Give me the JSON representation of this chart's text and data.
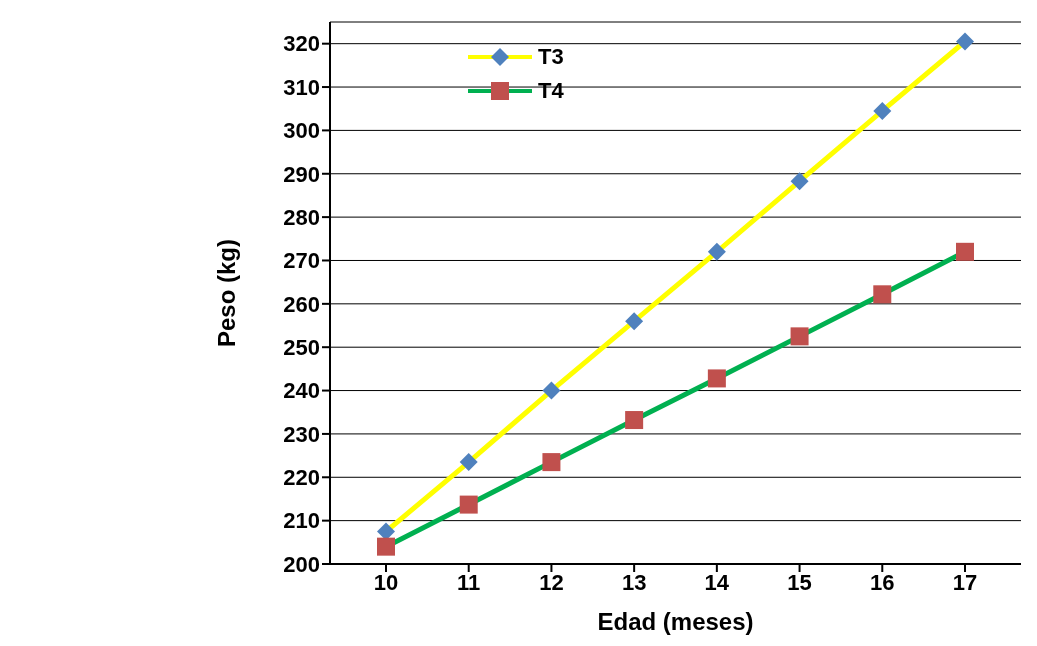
{
  "chart_data": {
    "type": "line",
    "xlabel": "Edad (meses)",
    "ylabel": "Peso (kg)",
    "categories": [
      "10",
      "11",
      "12",
      "13",
      "14",
      "15",
      "16",
      "17"
    ],
    "series": [
      {
        "name": "T3",
        "color": "#ffff00",
        "marker": "diamond",
        "values": [
          207.5,
          223.5,
          240,
          256,
          272,
          288.3,
          304.5,
          320.5
        ]
      },
      {
        "name": "T4",
        "color": "#00b050",
        "marker": "square",
        "values": [
          204,
          213.7,
          223.5,
          233.2,
          242.8,
          252.5,
          262.2,
          272
        ]
      }
    ],
    "ylim": [
      200,
      325
    ],
    "yticks": [
      200,
      210,
      220,
      230,
      240,
      250,
      260,
      270,
      280,
      290,
      300,
      310,
      320
    ],
    "grid": "y",
    "legend": "top"
  }
}
